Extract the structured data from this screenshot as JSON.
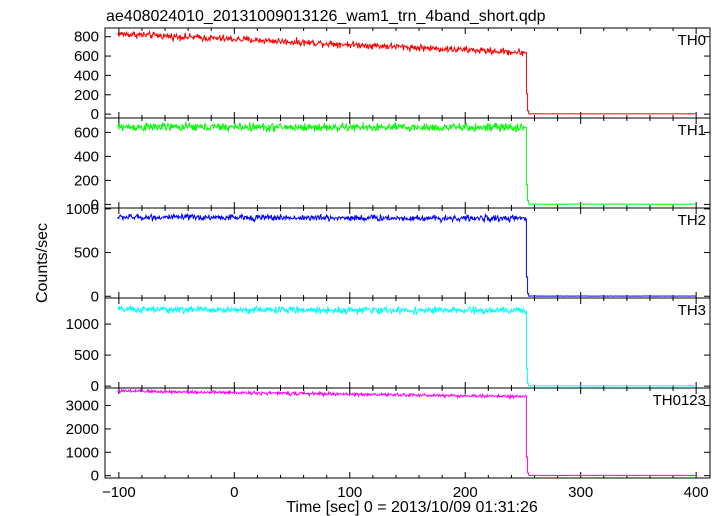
{
  "chart_data": {
    "type": "line",
    "title": "ae408024010_20131009013126_wam1_trn_4band_short.qdp",
    "xlabel": "Time [sec] 0 = 2013/10/09 01:31:26",
    "ylabel": "Counts/sec",
    "xlim": [
      -112,
      412
    ],
    "x_ticks": [
      -100,
      0,
      100,
      200,
      300,
      400
    ],
    "drop_time": 253,
    "time_start": -101,
    "time_end": 400,
    "panels": [
      {
        "name": "TH0",
        "color": "#ff0000",
        "ylim": [
          -40,
          890
        ],
        "y_ticks": [
          0,
          200,
          400,
          600,
          800
        ],
        "level_start": 830,
        "level_end": 635,
        "noise": 25,
        "tail": [
          210,
          35
        ],
        "post_level": 3
      },
      {
        "name": "TH1",
        "color": "#00ff00",
        "ylim": [
          -30,
          720
        ],
        "y_ticks": [
          0,
          200,
          400,
          600
        ],
        "level_start": 645,
        "level_end": 640,
        "noise": 25,
        "tail": [
          165,
          30
        ],
        "post_level": 2
      },
      {
        "name": "TH2",
        "color": "#0000ff",
        "ylim": [
          -20,
          1010
        ],
        "y_ticks": [
          0,
          500,
          1000
        ],
        "level_start": 905,
        "level_end": 890,
        "noise": 25,
        "tail": [
          220,
          30
        ],
        "post_level": 2
      },
      {
        "name": "TH3",
        "color": "#00ffff",
        "ylim": [
          -30,
          1420
        ],
        "y_ticks": [
          0,
          500,
          1000
        ],
        "level_start": 1235,
        "level_end": 1215,
        "noise": 40,
        "tail": [
          280,
          40
        ],
        "post_level": 5
      },
      {
        "name": "TH0123",
        "color": "#ff00ff",
        "ylim": [
          -100,
          3750
        ],
        "y_ticks": [
          0,
          1000,
          2000,
          3000
        ],
        "level_start": 3620,
        "level_end": 3380,
        "noise": 50,
        "tail": [
          800,
          120
        ],
        "post_level": 10
      }
    ]
  }
}
